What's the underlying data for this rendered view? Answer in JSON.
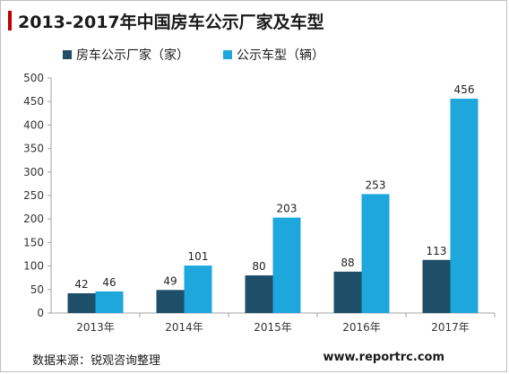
{
  "title": "2013-2017年中国房车公示厂家及车型",
  "source": "数据来源：锐观咨询整理",
  "website": "www.reportrc.com",
  "colors": {
    "series1": "#1f4e68",
    "series2": "#1ea7dd",
    "accent": "#c00000"
  },
  "chart_data": {
    "type": "bar",
    "categories": [
      "2013年",
      "2014年",
      "2015年",
      "2016年",
      "2017年"
    ],
    "series": [
      {
        "name": "房车公示厂家（家）",
        "values": [
          42,
          49,
          80,
          88,
          113
        ]
      },
      {
        "name": "公示车型（辆）",
        "values": [
          46,
          101,
          203,
          253,
          456
        ]
      }
    ],
    "ylim": [
      0,
      500
    ],
    "yticks": [
      0,
      50,
      100,
      150,
      200,
      250,
      300,
      350,
      400,
      450,
      500
    ],
    "grid": false,
    "legend": "top-left"
  }
}
